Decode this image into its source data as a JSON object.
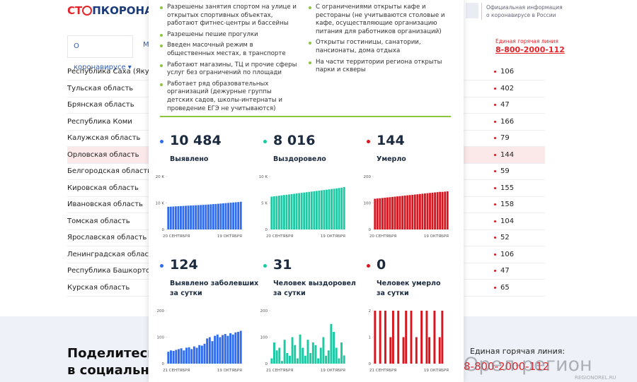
{
  "header": {
    "logo_left": "СТ",
    "logo_right": "ПКОРОНАВИ",
    "official_info": [
      "Официальная информация",
      "о коронавирусе в России"
    ],
    "hotline_label": "Единая горячая линия",
    "hotline_number": "8-800-2000-112"
  },
  "nav": [
    "О коронавирусе",
    "М"
  ],
  "regions": [
    {
      "name": "Республика Саха (Якутия)",
      "value": "106"
    },
    {
      "name": "Тульская область",
      "value": "402"
    },
    {
      "name": "Брянская область",
      "value": "47"
    },
    {
      "name": "Республика Коми",
      "value": "166"
    },
    {
      "name": "Калужская область",
      "value": "79"
    },
    {
      "name": "Орловская область",
      "value": "144"
    },
    {
      "name": "Белгородская область",
      "value": "59"
    },
    {
      "name": "Кировская область",
      "value": "155"
    },
    {
      "name": "Ивановская область",
      "value": "158"
    },
    {
      "name": "Томская область",
      "value": "104"
    },
    {
      "name": "Ярославская область",
      "value": "52"
    },
    {
      "name": "Ленинградская область",
      "value": "106"
    },
    {
      "name": "Республика Башкортоста",
      "value": "47"
    },
    {
      "name": "Курская область",
      "value": "65"
    }
  ],
  "popup": {
    "measures_left": [
      "Разрешены занятия спортом на улице и открытых спортивных объектах, работают фитнес-центры и бассейны",
      "Разрешены пешие прогулки",
      "Введен масочный режим в общественных местах, в транспорте",
      "Работают магазины, ТЦ и прочие сферы услуг без ограничений по площади",
      "Работает ряд образовательных организаций (дежурные группы детских садов, школы-интернаты и проведение ЕГЭ не учитываются)"
    ],
    "measures_right": [
      "С ограничениями открыты кафе и рестораны (не учитываются столовые и кафе, осуществляющие организацию питания для работников организаций)",
      "Открыты гостиницы, санатории, пансионаты, дома отдыха",
      "На части территории региона открыты парки и скверы"
    ],
    "stats": [
      {
        "number": "10 484",
        "label": [
          "Выявлено"
        ],
        "color": "#2f6bef"
      },
      {
        "number": "8 016",
        "label": [
          "Выздоровело"
        ],
        "color": "#1cc9a3"
      },
      {
        "number": "144",
        "label": [
          "Умерло"
        ],
        "color": "#d9151f"
      },
      {
        "number": "124",
        "label": [
          "Выявлено заболевших",
          "за сутки"
        ],
        "color": "#2f6bef"
      },
      {
        "number": "31",
        "label": [
          "Человек выздоровел",
          "за сутки"
        ],
        "color": "#1cc9a3"
      },
      {
        "number": "0",
        "label": [
          "Человек умерло",
          "за сутки"
        ],
        "color": "#d9151f"
      }
    ]
  },
  "chart_data": [
    {
      "type": "bar",
      "color": "#2f6bef",
      "categories": [
        "20 СЕНТЯБРЯ",
        null,
        null,
        null,
        null,
        null,
        null,
        null,
        null,
        null,
        null,
        null,
        null,
        null,
        null,
        null,
        null,
        null,
        null,
        null,
        null,
        null,
        null,
        null,
        null,
        null,
        null,
        null,
        null,
        "19 ОКТЯБРЯ"
      ],
      "values": [
        8570,
        8620,
        8680,
        8730,
        8790,
        8840,
        8900,
        8950,
        9000,
        9050,
        9100,
        9150,
        9200,
        9250,
        9300,
        9370,
        9430,
        9500,
        9570,
        9640,
        9720,
        9800,
        9880,
        9960,
        10040,
        10120,
        10200,
        10280,
        10360,
        10484
      ],
      "ylim": [
        0,
        20000
      ],
      "yticks": [
        0,
        {
          "value": 10000,
          "label": "10 K"
        },
        {
          "value": 20000,
          "label": "20 K"
        }
      ]
    },
    {
      "type": "bar",
      "color": "#1cc9a3",
      "categories": [
        "20 СЕНТЯБРЯ",
        null,
        null,
        null,
        null,
        null,
        null,
        null,
        null,
        null,
        null,
        null,
        null,
        null,
        null,
        null,
        null,
        null,
        null,
        null,
        null,
        null,
        null,
        null,
        null,
        null,
        null,
        null,
        null,
        "19 ОКТЯБРЯ"
      ],
      "values": [
        6200,
        6260,
        6320,
        6380,
        6440,
        6500,
        6560,
        6620,
        6680,
        6740,
        6800,
        6860,
        6920,
        6980,
        7040,
        7100,
        7160,
        7220,
        7280,
        7340,
        7400,
        7460,
        7520,
        7580,
        7640,
        7700,
        7760,
        7830,
        7900,
        8016
      ],
      "ylim": [
        0,
        10000
      ],
      "yticks": [
        0,
        {
          "value": 5000,
          "label": "5 K"
        },
        {
          "value": 10000,
          "label": "10 K"
        }
      ]
    },
    {
      "type": "bar",
      "color": "#d9151f",
      "categories": [
        "20 СЕНТЯБРЯ",
        null,
        null,
        null,
        null,
        null,
        null,
        null,
        null,
        null,
        null,
        null,
        null,
        null,
        null,
        null,
        null,
        null,
        null,
        null,
        null,
        null,
        null,
        null,
        null,
        null,
        null,
        null,
        null,
        "19 ОКТЯБРЯ"
      ],
      "values": [
        116,
        117,
        118,
        119,
        120,
        121,
        122,
        123,
        124,
        125,
        126,
        127,
        128,
        129,
        130,
        131,
        132,
        133,
        134,
        135,
        136,
        137,
        138,
        139,
        140,
        141,
        142,
        142,
        143,
        144
      ],
      "ylim": [
        0,
        200
      ],
      "yticks": [
        0,
        100,
        200
      ]
    },
    {
      "type": "bar",
      "color": "#2f6bef",
      "categories": [
        "21 СЕНТЯБРЯ",
        null,
        null,
        null,
        null,
        null,
        null,
        null,
        null,
        null,
        null,
        null,
        null,
        null,
        null,
        null,
        null,
        null,
        null,
        null,
        null,
        null,
        null,
        null,
        null,
        null,
        null,
        null,
        "19 ОКТЯБРЯ"
      ],
      "values": [
        45,
        50,
        48,
        52,
        55,
        58,
        50,
        60,
        62,
        55,
        65,
        60,
        70,
        68,
        75,
        95,
        100,
        85,
        105,
        110,
        100,
        108,
        112,
        105,
        115,
        110,
        118,
        120,
        124
      ],
      "ylim": [
        0,
        200
      ],
      "yticks": [
        0,
        100,
        200
      ]
    },
    {
      "type": "bar",
      "color": "#1cc9a3",
      "categories": [
        "21 СЕНТЯБРЯ",
        null,
        null,
        null,
        null,
        null,
        null,
        null,
        null,
        null,
        null,
        null,
        null,
        null,
        null,
        null,
        null,
        null,
        null,
        null,
        null,
        null,
        null,
        null,
        null,
        null,
        null,
        null,
        "19 ОКТЯБРЯ"
      ],
      "values": [
        20,
        80,
        50,
        60,
        10,
        90,
        40,
        30,
        100,
        70,
        20,
        110,
        60,
        30,
        90,
        40,
        80,
        70,
        20,
        60,
        100,
        30,
        50,
        150,
        120,
        60,
        20,
        80,
        31
      ],
      "ylim": [
        0,
        200
      ],
      "yticks": [
        0,
        100,
        200
      ]
    },
    {
      "type": "bar",
      "color": "#d9151f",
      "categories": [
        "21 СЕНТЯБРЯ",
        null,
        null,
        null,
        null,
        null,
        null,
        null,
        null,
        null,
        null,
        null,
        null,
        null,
        null,
        null,
        null,
        null,
        null,
        null,
        null,
        null,
        null,
        null,
        null,
        null,
        null,
        null,
        "19 ОКТЯБРЯ"
      ],
      "values": [
        2,
        0,
        2,
        0,
        2,
        0,
        1,
        2,
        0,
        2,
        0,
        1,
        2,
        0,
        2,
        0,
        1,
        0,
        2,
        0,
        2,
        1,
        0,
        2,
        0,
        1,
        2,
        0,
        0
      ],
      "ylim": [
        0,
        2
      ],
      "yticks": [
        0,
        1,
        2
      ]
    }
  ],
  "bottom": {
    "share": [
      "Поделитесь",
      "в социальны"
    ],
    "hotline_label": "Единая горячая линия:",
    "hotline_number": "8-800-2000-112"
  },
  "watermark": {
    "text": "Орел-регион",
    "site": "REGIONOREL.RU"
  }
}
